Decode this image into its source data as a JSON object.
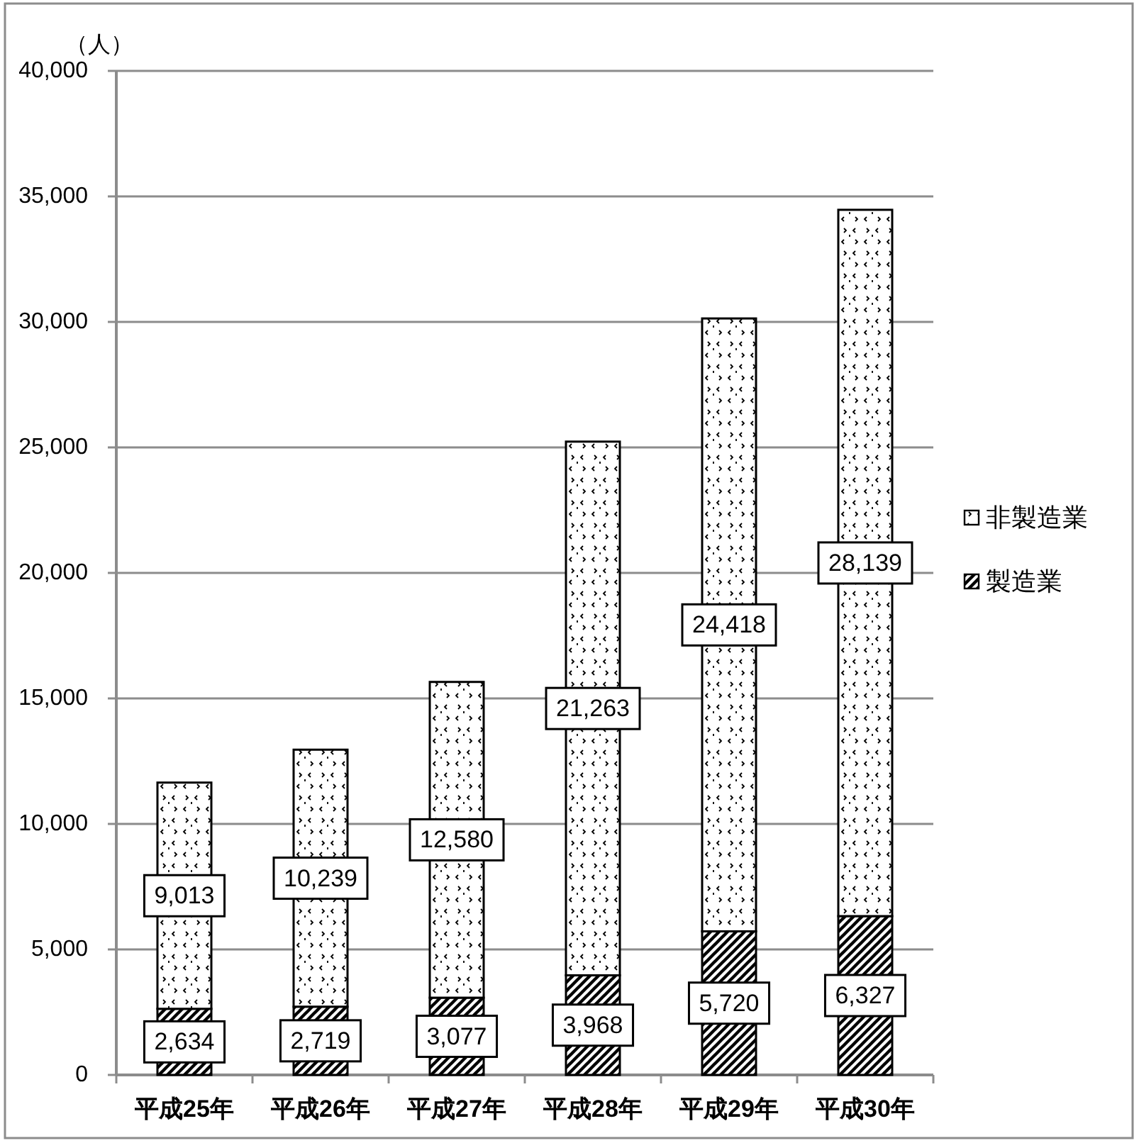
{
  "chart_data": {
    "type": "bar",
    "stacked": true,
    "ylabel": "（人）",
    "categories": [
      "平成25年",
      "平成26年",
      "平成27年",
      "平成28年",
      "平成29年",
      "平成30年"
    ],
    "series": [
      {
        "name": "製造業",
        "color": "#000000",
        "values": [
          2634,
          2719,
          3077,
          3968,
          5720,
          6327
        ],
        "value_labels": [
          "2,634",
          "2,719",
          "3,077",
          "3,968",
          "5,720",
          "6,327"
        ]
      },
      {
        "name": "非製造業",
        "color": "#000000",
        "values": [
          9013,
          10239,
          12580,
          21263,
          24418,
          28139
        ],
        "value_labels": [
          "9,013",
          "10,239",
          "12,580",
          "21,263",
          "24,418",
          "28,139"
        ]
      }
    ],
    "ylim": [
      0,
      40000
    ],
    "yticks": [
      0,
      {
        "value": 5000,
        "label": "5,000"
      },
      {
        "value": 10000,
        "label": "10,000"
      },
      {
        "value": 15000,
        "label": "15,000"
      },
      {
        "value": 20000,
        "label": "20,000"
      },
      {
        "value": 25000,
        "label": "25,000"
      },
      {
        "value": 30000,
        "label": "30,000"
      },
      {
        "value": 35000,
        "label": "35,000"
      },
      {
        "value": 40000,
        "label": "40,000"
      }
    ],
    "grid": "y",
    "legend": "right"
  }
}
